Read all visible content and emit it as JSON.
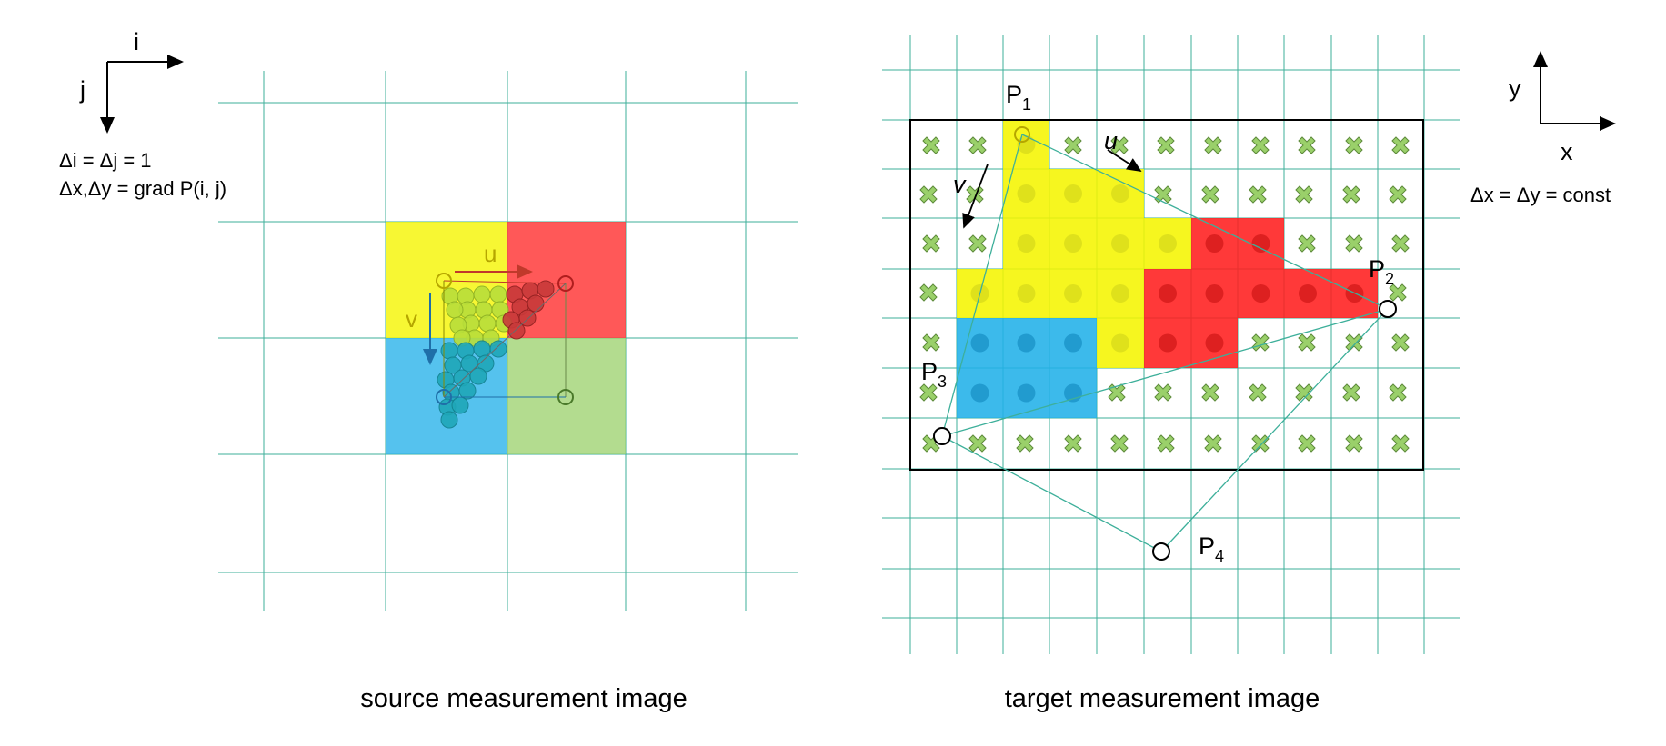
{
  "colors": {
    "grid": "#3daf9a",
    "yellow": "#f2f200",
    "red": "#ff2b2b",
    "blue": "#2ab3ea",
    "green": "#9ad06a",
    "frame": "#000000"
  },
  "source": {
    "caption": "source measurement image",
    "axis_i": "i",
    "axis_j": "j",
    "note_line1": "Δi = Δj = 1",
    "note_line2": "Δx,Δy = grad P(i, j)",
    "label_u": "u",
    "label_v": "v"
  },
  "target": {
    "caption": "target measurement image",
    "axis_x": "x",
    "axis_y": "y",
    "note": "Δx = Δy = const",
    "label_u": "u",
    "label_v": "v",
    "points": [
      {
        "letter": "P",
        "index": "1"
      },
      {
        "letter": "P",
        "index": "2"
      },
      {
        "letter": "P",
        "index": "3"
      },
      {
        "letter": "P",
        "index": "4"
      }
    ]
  }
}
